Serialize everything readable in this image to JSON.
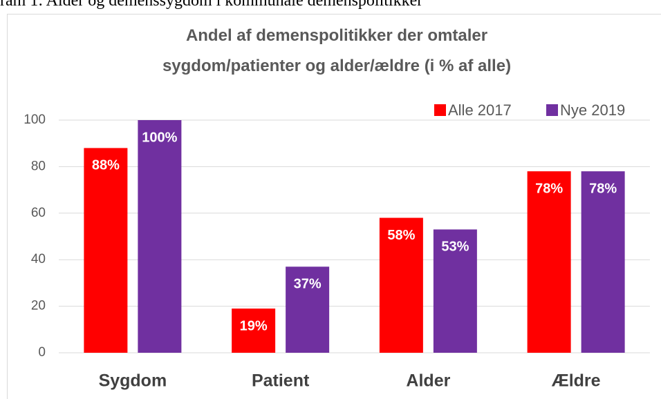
{
  "caption": "ram 1: Alder og demenssygdom i kommunale demenspolitikker",
  "chart_data": {
    "type": "bar",
    "title": "Andel af demenspolitikker der omtaler sygdom/patienter og alder/ældre (i % af alle)",
    "categories": [
      "Sygdom",
      "Patient",
      "Alder",
      "Ældre"
    ],
    "series": [
      {
        "name": "Alle 2017",
        "color": "#ff0000",
        "values": [
          88,
          19,
          58,
          78
        ],
        "value_labels": [
          "88%",
          "19%",
          "58%",
          "78%"
        ]
      },
      {
        "name": "Nye 2019",
        "color": "#7030a0",
        "values": [
          100,
          37,
          53,
          78
        ],
        "value_labels": [
          "100%",
          "37%",
          "53%",
          "78%"
        ]
      }
    ],
    "ylim": [
      0,
      100
    ],
    "yticks": [
      0,
      20,
      40,
      60,
      80,
      100
    ],
    "grid": true,
    "legend": "top-right"
  }
}
